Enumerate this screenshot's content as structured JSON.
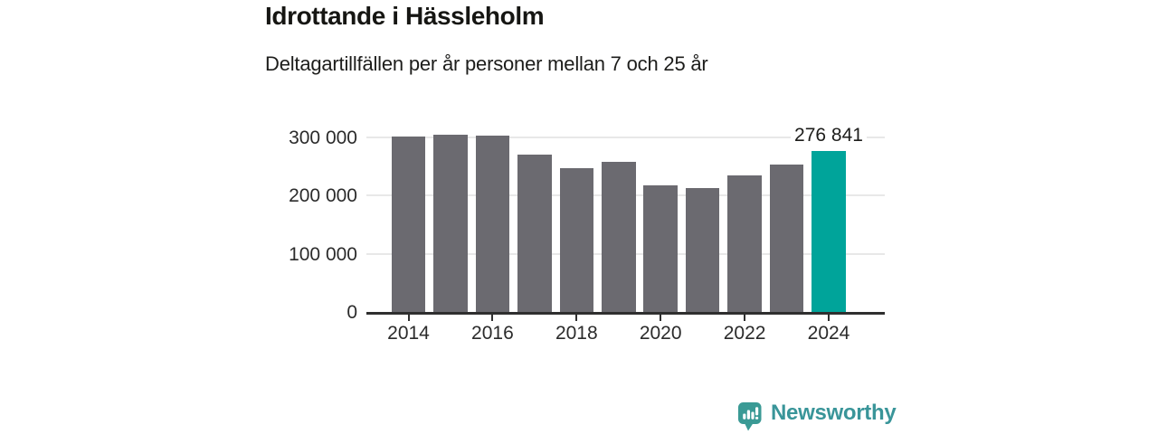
{
  "title": "Idrottande i Hässleholm",
  "subtitle": "Deltagartillfällen per år personer mellan 7 och 25 år",
  "branding": {
    "name": "Newsworthy",
    "icon": "newsworthy-bubble-chart-icon",
    "icon_color": "#3a9a95",
    "text_color": "#399599"
  },
  "chart_data": {
    "type": "bar",
    "title": "Idrottande i Hässleholm",
    "subtitle": "Deltagartillfällen per år personer mellan 7 och 25 år",
    "categories": [
      "2014",
      "2015",
      "2016",
      "2017",
      "2018",
      "2019",
      "2020",
      "2021",
      "2022",
      "2023",
      "2024"
    ],
    "values": [
      301500,
      304500,
      304000,
      270000,
      247000,
      258500,
      217500,
      213000,
      235000,
      253000,
      276841
    ],
    "highlight_index": 10,
    "annotation": {
      "index": 10,
      "text": "276 841"
    },
    "bar_color": "#6b6a70",
    "highlight_color": "#00a49a",
    "ylim": [
      0,
      350000
    ],
    "yticks": [
      0,
      100000,
      200000,
      300000
    ],
    "ytick_labels": [
      "0",
      "100 000",
      "200 000",
      "300 000"
    ],
    "xtick_years": [
      "2014",
      "2016",
      "2018",
      "2020",
      "2022",
      "2024"
    ],
    "grid": "horizontal",
    "gridline_color": "#e8e8e8",
    "axis_color": "#2f2f2f",
    "legend": "none"
  }
}
